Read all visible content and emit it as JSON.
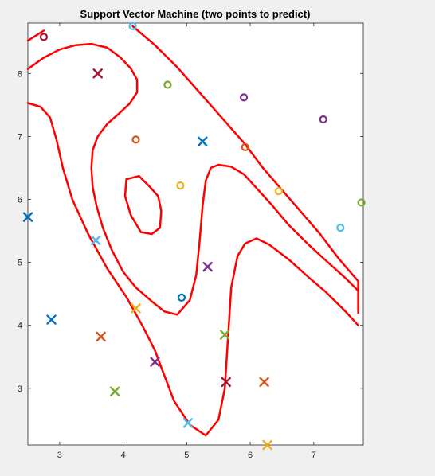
{
  "chart_data": {
    "type": "scatter",
    "title": "Support Vector Machine (two points to predict)",
    "xlabel": "",
    "ylabel": "",
    "xlim": [
      2.5,
      7.78
    ],
    "ylim": [
      2.1,
      8.8
    ],
    "xticks": [
      3,
      4,
      5,
      6,
      7
    ],
    "yticks": [
      3,
      4,
      5,
      6,
      7,
      8
    ],
    "grid": false,
    "legend": "none",
    "decision_boundary_color": "#ff0000",
    "points": [
      {
        "x": 2.75,
        "y": 8.58,
        "marker": "o",
        "color": "#a2142f"
      },
      {
        "x": 4.15,
        "y": 8.75,
        "marker": "o",
        "color": "#4dbeee"
      },
      {
        "x": 3.6,
        "y": 8.0,
        "marker": "x",
        "color": "#a2142f"
      },
      {
        "x": 4.7,
        "y": 7.82,
        "marker": "o",
        "color": "#77ac30"
      },
      {
        "x": 5.9,
        "y": 7.62,
        "marker": "o",
        "color": "#7e2f8e"
      },
      {
        "x": 7.15,
        "y": 7.27,
        "marker": "o",
        "color": "#7e2f8e"
      },
      {
        "x": 4.2,
        "y": 6.95,
        "marker": "o",
        "color": "#d95319"
      },
      {
        "x": 5.25,
        "y": 6.92,
        "marker": "x",
        "color": "#0072bd"
      },
      {
        "x": 5.92,
        "y": 6.83,
        "marker": "o",
        "color": "#d95319"
      },
      {
        "x": 4.9,
        "y": 6.22,
        "marker": "o",
        "color": "#edb120"
      },
      {
        "x": 6.45,
        "y": 6.13,
        "marker": "o",
        "color": "#edb120"
      },
      {
        "x": 7.75,
        "y": 5.95,
        "marker": "o",
        "color": "#77ac30"
      },
      {
        "x": 2.5,
        "y": 5.72,
        "marker": "x",
        "color": "#0072bd"
      },
      {
        "x": 7.42,
        "y": 5.55,
        "marker": "o",
        "color": "#4dbeee"
      },
      {
        "x": 3.57,
        "y": 5.35,
        "marker": "x",
        "color": "#4dbeee"
      },
      {
        "x": 5.33,
        "y": 4.93,
        "marker": "x",
        "color": "#7e2f8e"
      },
      {
        "x": 4.92,
        "y": 4.44,
        "marker": "o",
        "color": "#0072bd"
      },
      {
        "x": 4.2,
        "y": 4.27,
        "marker": "x",
        "color": "#edb120"
      },
      {
        "x": 2.87,
        "y": 4.09,
        "marker": "x",
        "color": "#0072bd"
      },
      {
        "x": 3.65,
        "y": 3.82,
        "marker": "x",
        "color": "#d95319"
      },
      {
        "x": 5.6,
        "y": 3.85,
        "marker": "x",
        "color": "#77ac30"
      },
      {
        "x": 4.5,
        "y": 3.42,
        "marker": "x",
        "color": "#7e2f8e"
      },
      {
        "x": 5.62,
        "y": 3.1,
        "marker": "x",
        "color": "#a2142f"
      },
      {
        "x": 6.22,
        "y": 3.1,
        "marker": "x",
        "color": "#d95319"
      },
      {
        "x": 3.87,
        "y": 2.95,
        "marker": "x",
        "color": "#77ac30"
      },
      {
        "x": 5.02,
        "y": 2.45,
        "marker": "x",
        "color": "#4dbeee"
      },
      {
        "x": 6.27,
        "y": 2.1,
        "marker": "x",
        "color": "#edb120"
      }
    ],
    "boundaries": [
      [
        [
          2.5,
          8.52
        ],
        [
          2.75,
          8.68
        ]
      ],
      [
        [
          2.5,
          8.07
        ],
        [
          2.75,
          8.25
        ],
        [
          3.0,
          8.38
        ],
        [
          3.25,
          8.45
        ],
        [
          3.5,
          8.47
        ],
        [
          3.75,
          8.41
        ],
        [
          3.95,
          8.26
        ],
        [
          4.12,
          8.08
        ],
        [
          4.22,
          7.9
        ],
        [
          4.22,
          7.7
        ],
        [
          4.1,
          7.52
        ],
        [
          3.92,
          7.35
        ],
        [
          3.75,
          7.2
        ],
        [
          3.6,
          7.0
        ],
        [
          3.52,
          6.78
        ],
        [
          3.5,
          6.5
        ],
        [
          3.52,
          6.2
        ],
        [
          3.58,
          5.9
        ],
        [
          3.68,
          5.55
        ],
        [
          3.82,
          5.2
        ],
        [
          4.0,
          4.85
        ],
        [
          4.2,
          4.6
        ],
        [
          4.45,
          4.38
        ],
        [
          4.65,
          4.22
        ],
        [
          4.85,
          4.17
        ],
        [
          5.05,
          4.4
        ],
        [
          5.15,
          4.8
        ],
        [
          5.2,
          5.3
        ],
        [
          5.25,
          5.9
        ],
        [
          5.3,
          6.3
        ],
        [
          5.38,
          6.5
        ],
        [
          5.5,
          6.55
        ],
        [
          5.7,
          6.52
        ],
        [
          5.9,
          6.4
        ],
        [
          6.1,
          6.18
        ],
        [
          6.35,
          5.9
        ],
        [
          6.6,
          5.6
        ],
        [
          6.9,
          5.3
        ],
        [
          7.2,
          5.02
        ],
        [
          7.5,
          4.75
        ],
        [
          7.7,
          4.55
        ]
      ],
      [
        [
          4.15,
          8.75
        ],
        [
          4.5,
          8.45
        ],
        [
          4.85,
          8.1
        ],
        [
          5.2,
          7.7
        ],
        [
          5.55,
          7.3
        ],
        [
          5.9,
          6.9
        ],
        [
          6.2,
          6.5
        ],
        [
          6.5,
          6.15
        ],
        [
          6.8,
          5.8
        ],
        [
          7.1,
          5.45
        ],
        [
          7.4,
          5.05
        ],
        [
          7.7,
          4.7
        ],
        [
          7.7,
          4.2
        ]
      ],
      [
        [
          2.5,
          7.53
        ],
        [
          2.7,
          7.47
        ],
        [
          2.85,
          7.3
        ],
        [
          2.95,
          6.95
        ],
        [
          3.05,
          6.5
        ],
        [
          3.2,
          6.0
        ],
        [
          3.45,
          5.45
        ],
        [
          3.75,
          4.9
        ],
        [
          4.05,
          4.45
        ],
        [
          4.3,
          4.0
        ],
        [
          4.5,
          3.6
        ],
        [
          4.65,
          3.2
        ],
        [
          4.8,
          2.8
        ],
        [
          5.05,
          2.42
        ],
        [
          5.3,
          2.25
        ],
        [
          5.5,
          2.5
        ],
        [
          5.6,
          3.0
        ],
        [
          5.65,
          3.8
        ],
        [
          5.7,
          4.6
        ],
        [
          5.8,
          5.1
        ],
        [
          5.92,
          5.3
        ],
        [
          6.1,
          5.38
        ],
        [
          6.3,
          5.28
        ],
        [
          6.6,
          5.05
        ],
        [
          6.9,
          4.78
        ],
        [
          7.2,
          4.52
        ],
        [
          7.5,
          4.22
        ],
        [
          7.7,
          4.0
        ]
      ],
      [
        [
          4.05,
          6.32
        ],
        [
          4.25,
          6.37
        ],
        [
          4.42,
          6.2
        ],
        [
          4.55,
          6.05
        ],
        [
          4.6,
          5.82
        ],
        [
          4.58,
          5.55
        ],
        [
          4.45,
          5.45
        ],
        [
          4.28,
          5.48
        ],
        [
          4.12,
          5.75
        ],
        [
          4.03,
          6.05
        ],
        [
          4.05,
          6.32
        ]
      ]
    ]
  }
}
